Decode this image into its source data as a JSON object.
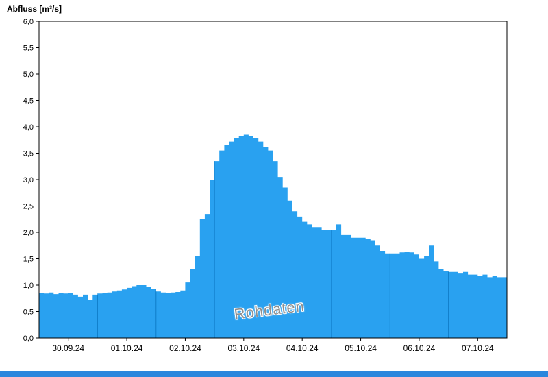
{
  "title": "Abfluss [m³/s]",
  "watermark": "Rohdaten",
  "colors": {
    "area_fill": "#29a1f0",
    "gridline": "#0f7cc8",
    "axis": "#000000",
    "bottom_bar": "#2a86dd"
  },
  "chart_data": {
    "type": "area",
    "title": "Abfluss [m³/s]",
    "ylabel": "Abfluss [m³/s]",
    "xlabel": "",
    "ylim": [
      0,
      6
    ],
    "ytick_step": 0.5,
    "ytick_labels": [
      "0,0",
      "0,5",
      "1,0",
      "1,5",
      "2,0",
      "2,5",
      "3,0",
      "3,5",
      "4,0",
      "4,5",
      "5,0",
      "5,5",
      "6,0"
    ],
    "categories": [
      "30.09.24",
      "01.10.24",
      "02.10.24",
      "03.10.24",
      "04.10.24",
      "05.10.24",
      "06.10.24",
      "07.10.24"
    ],
    "x_tick_positions_hours": [
      12,
      36,
      60,
      84,
      108,
      132,
      156,
      180
    ],
    "grid_positions_hours": [
      24,
      48,
      72,
      96,
      120,
      144,
      168
    ],
    "x_range_hours": [
      0,
      192
    ],
    "x_start": "30.09.24 00:00",
    "sample_interval_hours": 2,
    "grid": "vertical-day-lines-inside-area",
    "legend_position": "none",
    "series": [
      {
        "name": "Rohdaten",
        "values": [
          0.85,
          0.84,
          0.86,
          0.83,
          0.85,
          0.84,
          0.85,
          0.82,
          0.78,
          0.82,
          0.72,
          0.82,
          0.84,
          0.85,
          0.86,
          0.88,
          0.9,
          0.92,
          0.95,
          0.98,
          1.0,
          1.0,
          0.97,
          0.93,
          0.88,
          0.86,
          0.85,
          0.86,
          0.87,
          0.9,
          1.05,
          1.3,
          1.55,
          2.25,
          2.35,
          3.0,
          3.35,
          3.55,
          3.65,
          3.72,
          3.78,
          3.82,
          3.85,
          3.82,
          3.78,
          3.72,
          3.62,
          3.55,
          3.35,
          3.05,
          2.85,
          2.6,
          2.4,
          2.3,
          2.2,
          2.15,
          2.1,
          2.1,
          2.05,
          2.05,
          2.05,
          2.15,
          1.95,
          1.95,
          1.9,
          1.9,
          1.9,
          1.88,
          1.85,
          1.75,
          1.65,
          1.6,
          1.6,
          1.6,
          1.62,
          1.63,
          1.62,
          1.58,
          1.5,
          1.55,
          1.75,
          1.45,
          1.3,
          1.26,
          1.25,
          1.25,
          1.22,
          1.25,
          1.2,
          1.2,
          1.18,
          1.2,
          1.15,
          1.17,
          1.15,
          1.15,
          1.2
        ]
      }
    ]
  }
}
